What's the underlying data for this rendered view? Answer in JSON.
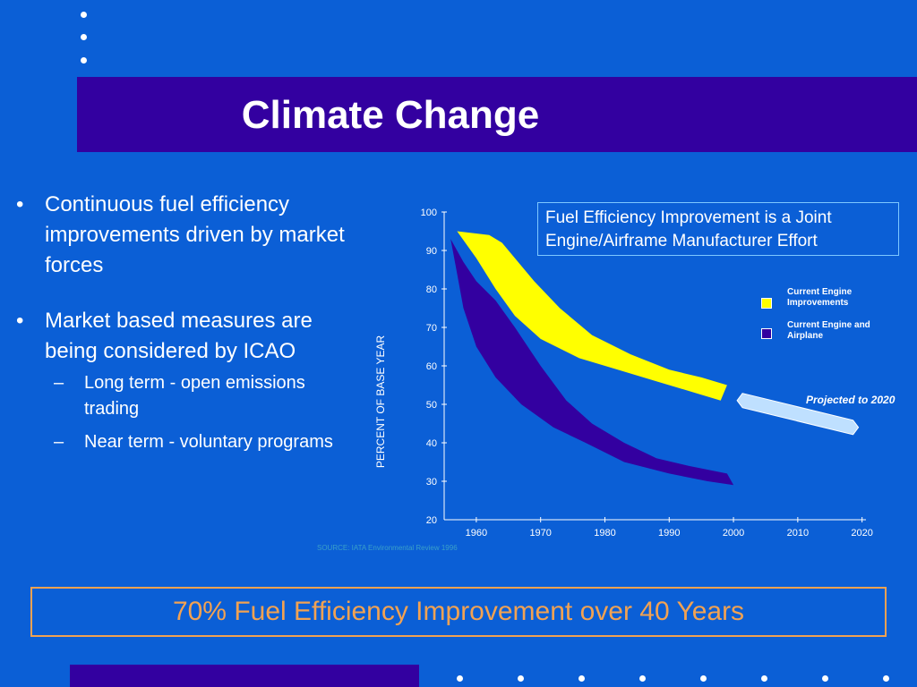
{
  "slide": {
    "title": "Climate Change",
    "bullets": [
      {
        "text": "Continuous fuel efficiency improvements driven by market forces"
      },
      {
        "text": "Market based measures are being considered by ICAO"
      }
    ],
    "sub_bullets": [
      {
        "text": "Long term - open emissions trading"
      },
      {
        "text": "Near term - voluntary programs"
      }
    ],
    "bullet_mark": "•",
    "sub_bullet_mark": "–",
    "callout": "Fuel Efficiency Improvement is a Joint Engine/Airframe Manufacturer Effort",
    "source": "SOURCE: IATA Environmental Review 1996",
    "footer": "70% Fuel Efficiency Improvement over 40 Years",
    "colors": {
      "background": "#0B5FD6",
      "title_bar": "#3300A0",
      "footer_text": "#F2A252",
      "yellow_band": "#FFFF00",
      "purple_band": "#3300A0",
      "projection": "#BFE0FF"
    }
  },
  "chart_data": {
    "type": "area",
    "xlabel": "",
    "ylabel": "PERCENT OF BASE YEAR",
    "xlim": [
      1955,
      2022
    ],
    "ylim": [
      20,
      100
    ],
    "xticks": [
      1960,
      1970,
      1980,
      1990,
      2000,
      2010,
      2020
    ],
    "yticks": [
      20,
      30,
      40,
      50,
      60,
      70,
      80,
      90,
      100
    ],
    "series": [
      {
        "name": "Current Engine Improvements",
        "color": "#FFFF00",
        "upper": [
          [
            1957,
            95
          ],
          [
            1962,
            94
          ],
          [
            1964,
            92
          ],
          [
            1966,
            88
          ],
          [
            1969,
            82
          ],
          [
            1973,
            75
          ],
          [
            1978,
            68
          ],
          [
            1984,
            63
          ],
          [
            1990,
            59
          ],
          [
            1995,
            57
          ],
          [
            1999,
            55
          ]
        ],
        "lower": [
          [
            1957,
            95
          ],
          [
            1960,
            88
          ],
          [
            1963,
            80
          ],
          [
            1966,
            73
          ],
          [
            1970,
            67
          ],
          [
            1976,
            62
          ],
          [
            1982,
            59
          ],
          [
            1988,
            56
          ],
          [
            1994,
            53
          ],
          [
            1998,
            51
          ]
        ]
      },
      {
        "name": "Current Engine and Airplane",
        "color": "#3300A0",
        "upper": [
          [
            1956,
            93
          ],
          [
            1958,
            87
          ],
          [
            1960,
            82
          ],
          [
            1963,
            77
          ],
          [
            1966,
            70
          ],
          [
            1970,
            60
          ],
          [
            1974,
            51
          ],
          [
            1978,
            45
          ],
          [
            1983,
            40
          ],
          [
            1988,
            36
          ],
          [
            1993,
            34
          ],
          [
            1999,
            32
          ]
        ],
        "lower": [
          [
            1956,
            93
          ],
          [
            1957,
            84
          ],
          [
            1958,
            75
          ],
          [
            1960,
            65
          ],
          [
            1963,
            57
          ],
          [
            1967,
            50
          ],
          [
            1972,
            44
          ],
          [
            1977,
            40
          ],
          [
            1983,
            35
          ],
          [
            1990,
            32
          ],
          [
            1996,
            30
          ],
          [
            2000,
            29
          ]
        ]
      }
    ],
    "projection": {
      "label": "Projected to 2020",
      "from": [
        2000,
        51
      ],
      "to": [
        2020,
        44
      ]
    },
    "legend_position": "right",
    "grid": false
  }
}
